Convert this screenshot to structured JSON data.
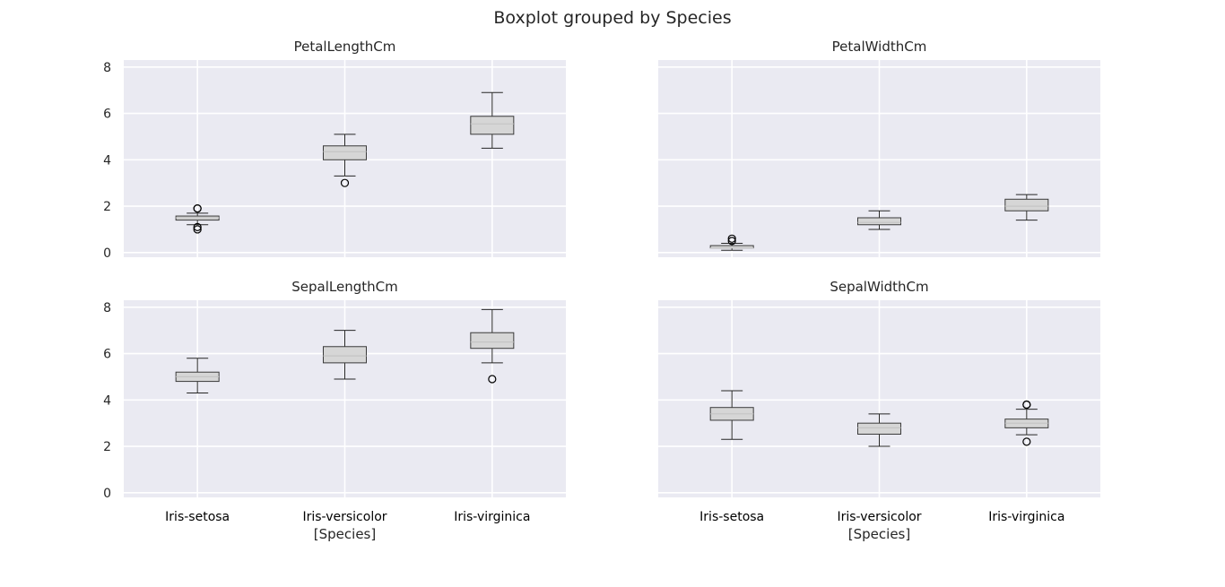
{
  "title": "Boxplot grouped by Species",
  "chart_data": {
    "type": "box",
    "title": "Boxplot grouped by Species",
    "xlabel": "[Species]",
    "categories": [
      "Iris-setosa",
      "Iris-versicolor",
      "Iris-virginica"
    ],
    "ylim": [
      -0.2,
      8.3
    ],
    "yticks": [
      0,
      2,
      4,
      6,
      8
    ],
    "grid": true,
    "panels": [
      {
        "title": "PetalLengthCm",
        "boxes": [
          {
            "whisker_low": 1.2,
            "q1": 1.4,
            "median": 1.5,
            "q3": 1.575,
            "whisker_high": 1.7,
            "outliers": [
              1.0,
              1.1,
              1.9,
              1.9
            ]
          },
          {
            "whisker_low": 3.3,
            "q1": 4.0,
            "median": 4.35,
            "q3": 4.6,
            "whisker_high": 5.1,
            "outliers": [
              3.0
            ]
          },
          {
            "whisker_low": 4.5,
            "q1": 5.1,
            "median": 5.55,
            "q3": 5.875,
            "whisker_high": 6.9,
            "outliers": []
          }
        ]
      },
      {
        "title": "PetalWidthCm",
        "boxes": [
          {
            "whisker_low": 0.1,
            "q1": 0.2,
            "median": 0.2,
            "q3": 0.3,
            "whisker_high": 0.4,
            "outliers": [
              0.5,
              0.6
            ]
          },
          {
            "whisker_low": 1.0,
            "q1": 1.2,
            "median": 1.3,
            "q3": 1.5,
            "whisker_high": 1.8,
            "outliers": []
          },
          {
            "whisker_low": 1.4,
            "q1": 1.8,
            "median": 2.0,
            "q3": 2.3,
            "whisker_high": 2.5,
            "outliers": []
          }
        ]
      },
      {
        "title": "SepalLengthCm",
        "boxes": [
          {
            "whisker_low": 4.3,
            "q1": 4.8,
            "median": 5.0,
            "q3": 5.2,
            "whisker_high": 5.8,
            "outliers": []
          },
          {
            "whisker_low": 4.9,
            "q1": 5.6,
            "median": 5.9,
            "q3": 6.3,
            "whisker_high": 7.0,
            "outliers": []
          },
          {
            "whisker_low": 5.6,
            "q1": 6.225,
            "median": 6.5,
            "q3": 6.9,
            "whisker_high": 7.9,
            "outliers": [
              4.9
            ]
          }
        ]
      },
      {
        "title": "SepalWidthCm",
        "boxes": [
          {
            "whisker_low": 2.3,
            "q1": 3.125,
            "median": 3.4,
            "q3": 3.675,
            "whisker_high": 4.4,
            "outliers": []
          },
          {
            "whisker_low": 2.0,
            "q1": 2.525,
            "median": 2.8,
            "q3": 3.0,
            "whisker_high": 3.4,
            "outliers": []
          },
          {
            "whisker_low": 2.5,
            "q1": 2.8,
            "median": 3.0,
            "q3": 3.175,
            "whisker_high": 3.6,
            "outliers": [
              2.2,
              3.8,
              3.8
            ]
          }
        ]
      }
    ],
    "colors": {
      "axes_bg": "#EAEAF2",
      "grid": "#FFFFFF",
      "box_edge": "#3A3A3A",
      "box_fill": "#D6D6D6",
      "median": "#C4C4C4",
      "whisker": "#262626"
    }
  }
}
